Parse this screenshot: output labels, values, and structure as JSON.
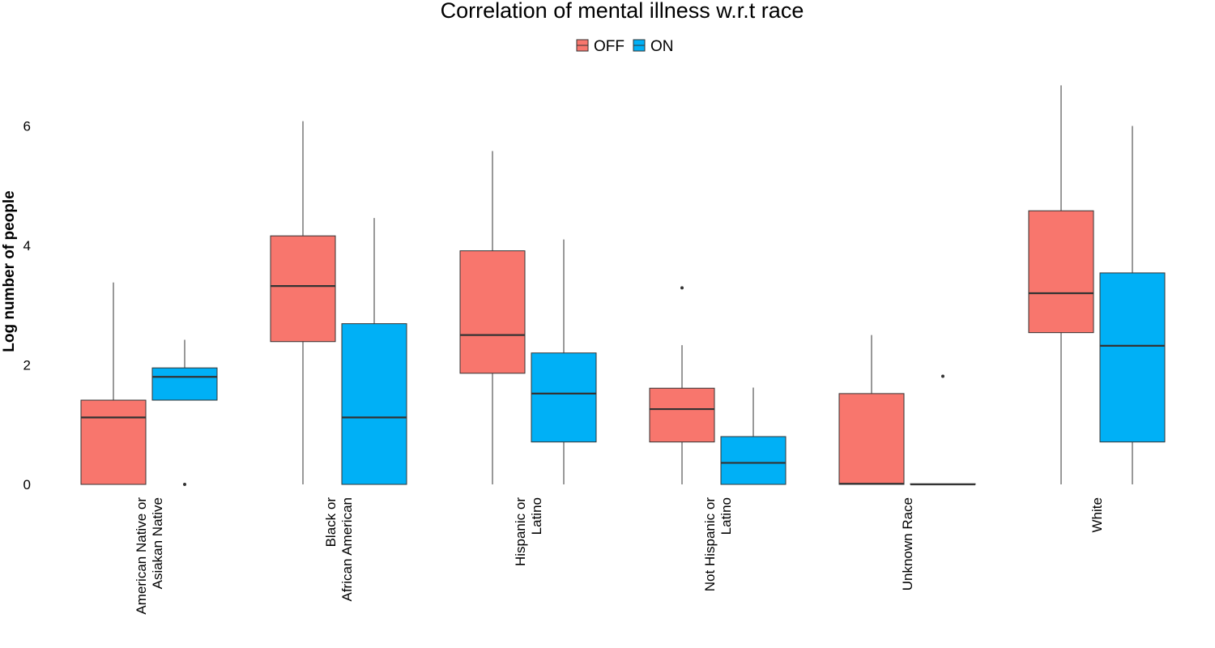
{
  "chart_data": {
    "type": "boxplot",
    "title": "Correlation of mental illness w.r.t race",
    "ylabel": "Log number of people",
    "xlabel": "",
    "ylim": [
      0,
      6.7
    ],
    "y_ticks": [
      0,
      2,
      4,
      6
    ],
    "grid": false,
    "legend_position": "top",
    "categories": [
      [
        "American Native or",
        "Asiakan Native"
      ],
      [
        "Black or",
        "African American"
      ],
      [
        "Hispanic or",
        "Latino"
      ],
      [
        "Not Hispanic or",
        "Latino"
      ],
      [
        "Unknown Race"
      ],
      [
        "White"
      ]
    ],
    "series": [
      {
        "name": "OFF",
        "color": "#F8766D",
        "boxes": [
          {
            "min": 0,
            "q1": 0,
            "median": 1.12,
            "q3": 1.41,
            "max": 3.38,
            "outliers": []
          },
          {
            "min": 0,
            "q1": 2.39,
            "median": 3.32,
            "q3": 4.16,
            "max": 6.08,
            "outliers": []
          },
          {
            "min": 0,
            "q1": 1.86,
            "median": 2.5,
            "q3": 3.91,
            "max": 5.58,
            "outliers": []
          },
          {
            "min": 0,
            "q1": 0.71,
            "median": 1.26,
            "q3": 1.61,
            "max": 2.33,
            "outliers": [
              3.29
            ]
          },
          {
            "min": 0,
            "q1": 0,
            "median": 0.01,
            "q3": 1.52,
            "max": 2.5,
            "outliers": []
          },
          {
            "min": 0,
            "q1": 2.54,
            "median": 3.2,
            "q3": 4.58,
            "max": 6.68,
            "outliers": []
          }
        ]
      },
      {
        "name": "ON",
        "color": "#00B0F6",
        "boxes": [
          {
            "min": 1.41,
            "q1": 1.41,
            "median": 1.8,
            "q3": 1.95,
            "max": 2.42,
            "outliers": [
              0
            ]
          },
          {
            "min": 0,
            "q1": 0,
            "median": 1.12,
            "q3": 2.69,
            "max": 4.46,
            "outliers": []
          },
          {
            "min": 0,
            "q1": 0.71,
            "median": 1.52,
            "q3": 2.2,
            "max": 4.1,
            "outliers": []
          },
          {
            "min": 0,
            "q1": 0,
            "median": 0.36,
            "q3": 0.8,
            "max": 1.62,
            "outliers": []
          },
          {
            "min": 0,
            "q1": 0,
            "median": 0,
            "q3": 0.01,
            "max": 0.01,
            "outliers": [
              1.81
            ]
          },
          {
            "min": 0,
            "q1": 0.71,
            "median": 2.32,
            "q3": 3.54,
            "max": 6.0,
            "outliers": []
          }
        ]
      }
    ]
  }
}
